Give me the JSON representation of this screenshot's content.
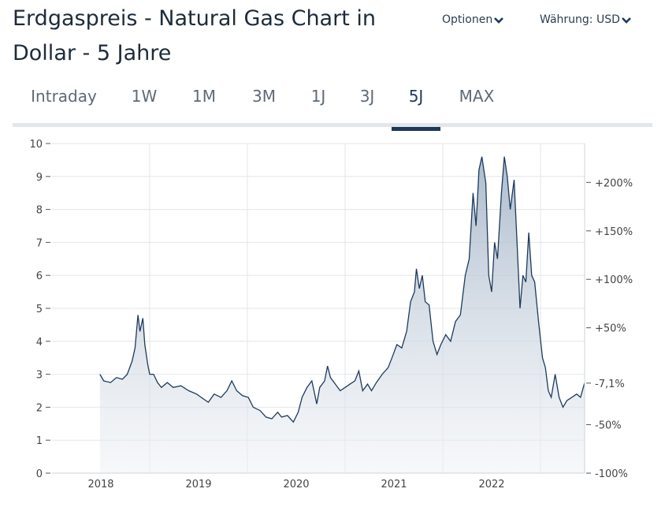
{
  "header": {
    "title": "Erdgaspreis - Natural Gas Chart in Dollar - 5 Jahre",
    "options_label": "Optionen",
    "currency_label": "Währung: USD"
  },
  "tabs": [
    {
      "label": "Intraday"
    },
    {
      "label": "1W"
    },
    {
      "label": "1M"
    },
    {
      "label": "3M"
    },
    {
      "label": "1J"
    },
    {
      "label": "3J"
    },
    {
      "label": "5J",
      "active": true
    },
    {
      "label": "MAX"
    }
  ],
  "colors": {
    "line": "#1d3a5c",
    "negative": "#d9334a",
    "grid": "#e3e6ea"
  },
  "chart_data": {
    "type": "area",
    "title": "Erdgaspreis - Natural Gas Chart in Dollar - 5 Jahre",
    "ylim": [
      0,
      10
    ],
    "yticks": [
      0,
      1,
      2,
      3,
      4,
      5,
      6,
      7,
      8,
      9,
      10
    ],
    "xlim": [
      2017.5,
      2022.95
    ],
    "xticks": [
      {
        "label": "2018",
        "value": 2018
      },
      {
        "label": "2019",
        "value": 2019
      },
      {
        "label": "2020",
        "value": 2020
      },
      {
        "label": "2021",
        "value": 2021
      },
      {
        "label": "2022",
        "value": 2022
      }
    ],
    "base_price": 2.94,
    "right_ticks": [
      {
        "label": "+200%",
        "pct": 200
      },
      {
        "label": "+150%",
        "pct": 150
      },
      {
        "label": "+100%",
        "pct": 100
      },
      {
        "label": "+50%",
        "pct": 50
      },
      {
        "label": "-7,1%",
        "pct": -7.1,
        "current": true
      },
      {
        "label": "-50%",
        "pct": -50
      },
      {
        "label": "-100%",
        "pct": -100
      }
    ],
    "x": [
      2017.99,
      2018.03,
      2018.1,
      2018.16,
      2018.22,
      2018.27,
      2018.32,
      2018.35,
      2018.38,
      2018.4,
      2018.43,
      2018.45,
      2018.48,
      2018.5,
      2018.54,
      2018.58,
      2018.62,
      2018.68,
      2018.74,
      2018.82,
      2018.9,
      2018.98,
      2019.05,
      2019.1,
      2019.16,
      2019.23,
      2019.29,
      2019.34,
      2019.39,
      2019.45,
      2019.51,
      2019.56,
      2019.63,
      2019.69,
      2019.75,
      2019.81,
      2019.85,
      2019.91,
      2019.97,
      2020.02,
      2020.06,
      2020.11,
      2020.16,
      2020.21,
      2020.24,
      2020.29,
      2020.32,
      2020.35,
      2020.4,
      2020.45,
      2020.5,
      2020.55,
      2020.6,
      2020.64,
      2020.68,
      2020.73,
      2020.77,
      2020.82,
      2020.88,
      2020.94,
      2020.98,
      2021.03,
      2021.08,
      2021.13,
      2021.17,
      2021.21,
      2021.23,
      2021.26,
      2021.29,
      2021.32,
      2021.36,
      2021.4,
      2021.44,
      2021.48,
      2021.53,
      2021.58,
      2021.63,
      2021.68,
      2021.73,
      2021.77,
      2021.81,
      2021.84,
      2021.87,
      2021.9,
      2021.94,
      2021.97,
      2022.0,
      2022.03,
      2022.06,
      2022.1,
      2022.13,
      2022.16,
      2022.19,
      2022.23,
      2022.26,
      2022.29,
      2022.32,
      2022.35,
      2022.38,
      2022.41,
      2022.44,
      2022.48,
      2022.52,
      2022.55,
      2022.58,
      2022.61,
      2022.65,
      2022.69,
      2022.73,
      2022.77,
      2022.82,
      2022.87,
      2022.91,
      2022.95
    ],
    "y": [
      3.0,
      2.8,
      2.75,
      2.9,
      2.85,
      3.0,
      3.4,
      3.8,
      4.8,
      4.3,
      4.7,
      3.9,
      3.3,
      3.0,
      3.0,
      2.75,
      2.6,
      2.75,
      2.6,
      2.65,
      2.5,
      2.4,
      2.25,
      2.15,
      2.4,
      2.3,
      2.5,
      2.8,
      2.5,
      2.35,
      2.3,
      2.0,
      1.9,
      1.7,
      1.65,
      1.85,
      1.7,
      1.75,
      1.55,
      1.85,
      2.3,
      2.6,
      2.8,
      2.1,
      2.6,
      2.8,
      3.25,
      2.9,
      2.7,
      2.5,
      2.6,
      2.7,
      2.8,
      3.1,
      2.5,
      2.7,
      2.5,
      2.75,
      3.0,
      3.2,
      3.5,
      3.9,
      3.8,
      4.3,
      5.2,
      5.5,
      6.2,
      5.6,
      6.0,
      5.2,
      5.1,
      4.0,
      3.6,
      3.9,
      4.2,
      4.0,
      4.6,
      4.8,
      6.0,
      6.5,
      8.5,
      7.5,
      9.2,
      9.6,
      8.8,
      6.0,
      5.5,
      7.0,
      6.5,
      8.5,
      9.6,
      9.0,
      8.0,
      8.9,
      7.0,
      5.0,
      6.0,
      5.8,
      7.3,
      6.0,
      5.8,
      4.6,
      3.5,
      3.2,
      2.5,
      2.3,
      3.0,
      2.3,
      2.0,
      2.2,
      2.3,
      2.4,
      2.3,
      2.73
    ]
  }
}
